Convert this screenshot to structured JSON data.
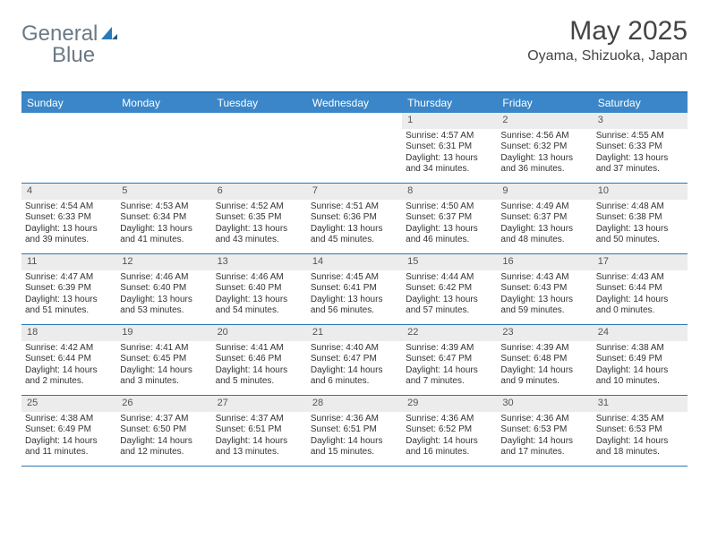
{
  "brand": {
    "part1": "General",
    "part2": "Blue"
  },
  "title": "May 2025",
  "location": "Oyama, Shizuoka, Japan",
  "colors": {
    "header_bg": "#3a86c8",
    "border": "#2a78b8",
    "daynum_bg": "#ececec",
    "text": "#333333",
    "logo_gray": "#6b7a86",
    "logo_blue": "#2a78b8"
  },
  "dayHeaders": [
    "Sunday",
    "Monday",
    "Tuesday",
    "Wednesday",
    "Thursday",
    "Friday",
    "Saturday"
  ],
  "weeks": [
    [
      {
        "n": "",
        "sunrise": "",
        "sunset": "",
        "daylight": ""
      },
      {
        "n": "",
        "sunrise": "",
        "sunset": "",
        "daylight": ""
      },
      {
        "n": "",
        "sunrise": "",
        "sunset": "",
        "daylight": ""
      },
      {
        "n": "",
        "sunrise": "",
        "sunset": "",
        "daylight": ""
      },
      {
        "n": "1",
        "sunrise": "Sunrise: 4:57 AM",
        "sunset": "Sunset: 6:31 PM",
        "daylight": "Daylight: 13 hours and 34 minutes."
      },
      {
        "n": "2",
        "sunrise": "Sunrise: 4:56 AM",
        "sunset": "Sunset: 6:32 PM",
        "daylight": "Daylight: 13 hours and 36 minutes."
      },
      {
        "n": "3",
        "sunrise": "Sunrise: 4:55 AM",
        "sunset": "Sunset: 6:33 PM",
        "daylight": "Daylight: 13 hours and 37 minutes."
      }
    ],
    [
      {
        "n": "4",
        "sunrise": "Sunrise: 4:54 AM",
        "sunset": "Sunset: 6:33 PM",
        "daylight": "Daylight: 13 hours and 39 minutes."
      },
      {
        "n": "5",
        "sunrise": "Sunrise: 4:53 AM",
        "sunset": "Sunset: 6:34 PM",
        "daylight": "Daylight: 13 hours and 41 minutes."
      },
      {
        "n": "6",
        "sunrise": "Sunrise: 4:52 AM",
        "sunset": "Sunset: 6:35 PM",
        "daylight": "Daylight: 13 hours and 43 minutes."
      },
      {
        "n": "7",
        "sunrise": "Sunrise: 4:51 AM",
        "sunset": "Sunset: 6:36 PM",
        "daylight": "Daylight: 13 hours and 45 minutes."
      },
      {
        "n": "8",
        "sunrise": "Sunrise: 4:50 AM",
        "sunset": "Sunset: 6:37 PM",
        "daylight": "Daylight: 13 hours and 46 minutes."
      },
      {
        "n": "9",
        "sunrise": "Sunrise: 4:49 AM",
        "sunset": "Sunset: 6:37 PM",
        "daylight": "Daylight: 13 hours and 48 minutes."
      },
      {
        "n": "10",
        "sunrise": "Sunrise: 4:48 AM",
        "sunset": "Sunset: 6:38 PM",
        "daylight": "Daylight: 13 hours and 50 minutes."
      }
    ],
    [
      {
        "n": "11",
        "sunrise": "Sunrise: 4:47 AM",
        "sunset": "Sunset: 6:39 PM",
        "daylight": "Daylight: 13 hours and 51 minutes."
      },
      {
        "n": "12",
        "sunrise": "Sunrise: 4:46 AM",
        "sunset": "Sunset: 6:40 PM",
        "daylight": "Daylight: 13 hours and 53 minutes."
      },
      {
        "n": "13",
        "sunrise": "Sunrise: 4:46 AM",
        "sunset": "Sunset: 6:40 PM",
        "daylight": "Daylight: 13 hours and 54 minutes."
      },
      {
        "n": "14",
        "sunrise": "Sunrise: 4:45 AM",
        "sunset": "Sunset: 6:41 PM",
        "daylight": "Daylight: 13 hours and 56 minutes."
      },
      {
        "n": "15",
        "sunrise": "Sunrise: 4:44 AM",
        "sunset": "Sunset: 6:42 PM",
        "daylight": "Daylight: 13 hours and 57 minutes."
      },
      {
        "n": "16",
        "sunrise": "Sunrise: 4:43 AM",
        "sunset": "Sunset: 6:43 PM",
        "daylight": "Daylight: 13 hours and 59 minutes."
      },
      {
        "n": "17",
        "sunrise": "Sunrise: 4:43 AM",
        "sunset": "Sunset: 6:44 PM",
        "daylight": "Daylight: 14 hours and 0 minutes."
      }
    ],
    [
      {
        "n": "18",
        "sunrise": "Sunrise: 4:42 AM",
        "sunset": "Sunset: 6:44 PM",
        "daylight": "Daylight: 14 hours and 2 minutes."
      },
      {
        "n": "19",
        "sunrise": "Sunrise: 4:41 AM",
        "sunset": "Sunset: 6:45 PM",
        "daylight": "Daylight: 14 hours and 3 minutes."
      },
      {
        "n": "20",
        "sunrise": "Sunrise: 4:41 AM",
        "sunset": "Sunset: 6:46 PM",
        "daylight": "Daylight: 14 hours and 5 minutes."
      },
      {
        "n": "21",
        "sunrise": "Sunrise: 4:40 AM",
        "sunset": "Sunset: 6:47 PM",
        "daylight": "Daylight: 14 hours and 6 minutes."
      },
      {
        "n": "22",
        "sunrise": "Sunrise: 4:39 AM",
        "sunset": "Sunset: 6:47 PM",
        "daylight": "Daylight: 14 hours and 7 minutes."
      },
      {
        "n": "23",
        "sunrise": "Sunrise: 4:39 AM",
        "sunset": "Sunset: 6:48 PM",
        "daylight": "Daylight: 14 hours and 9 minutes."
      },
      {
        "n": "24",
        "sunrise": "Sunrise: 4:38 AM",
        "sunset": "Sunset: 6:49 PM",
        "daylight": "Daylight: 14 hours and 10 minutes."
      }
    ],
    [
      {
        "n": "25",
        "sunrise": "Sunrise: 4:38 AM",
        "sunset": "Sunset: 6:49 PM",
        "daylight": "Daylight: 14 hours and 11 minutes."
      },
      {
        "n": "26",
        "sunrise": "Sunrise: 4:37 AM",
        "sunset": "Sunset: 6:50 PM",
        "daylight": "Daylight: 14 hours and 12 minutes."
      },
      {
        "n": "27",
        "sunrise": "Sunrise: 4:37 AM",
        "sunset": "Sunset: 6:51 PM",
        "daylight": "Daylight: 14 hours and 13 minutes."
      },
      {
        "n": "28",
        "sunrise": "Sunrise: 4:36 AM",
        "sunset": "Sunset: 6:51 PM",
        "daylight": "Daylight: 14 hours and 15 minutes."
      },
      {
        "n": "29",
        "sunrise": "Sunrise: 4:36 AM",
        "sunset": "Sunset: 6:52 PM",
        "daylight": "Daylight: 14 hours and 16 minutes."
      },
      {
        "n": "30",
        "sunrise": "Sunrise: 4:36 AM",
        "sunset": "Sunset: 6:53 PM",
        "daylight": "Daylight: 14 hours and 17 minutes."
      },
      {
        "n": "31",
        "sunrise": "Sunrise: 4:35 AM",
        "sunset": "Sunset: 6:53 PM",
        "daylight": "Daylight: 14 hours and 18 minutes."
      }
    ]
  ]
}
